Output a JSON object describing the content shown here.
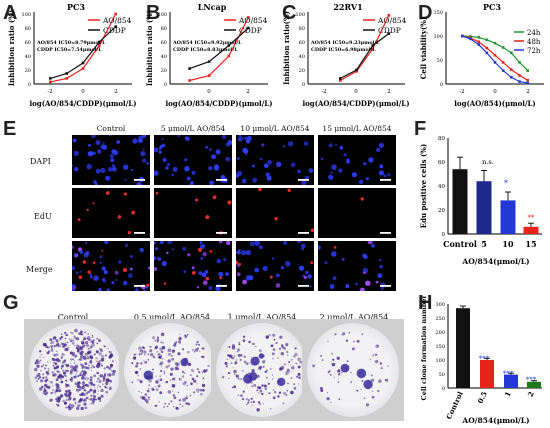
{
  "panel_letters": [
    "A",
    "B",
    "C",
    "D",
    "E",
    "F",
    "G",
    "H"
  ],
  "panel_a": {
    "title": "PC3",
    "legend": [
      "AO/854",
      "CDDP"
    ],
    "annotation": [
      "AO/854 IC50=8.79μmol/L",
      "CDDP IC50=7.54μmol/L"
    ],
    "xlabel": "log(AO/854/CDDP)(μmol/L)",
    "ylabel": "Inhibition ratio (%)",
    "xticks": [
      "-2",
      "0",
      "2"
    ],
    "yticks": [
      "0",
      "20",
      "40",
      "60",
      "80",
      "100"
    ]
  },
  "panel_b": {
    "title": "LNcap",
    "legend": [
      "AO/854",
      "CDDP"
    ],
    "annotation": [
      "AO/854 IC50=9.92μmol/L",
      "CDDP IC50=8.83μmol/L"
    ],
    "xlabel": "log(AO/854/CDDP)(μmol/L)",
    "ylabel": "Inhibition ratio (%)",
    "xticks": [
      "0",
      "2"
    ],
    "yticks": [
      "0",
      "20",
      "40",
      "60",
      "80",
      "100"
    ]
  },
  "panel_c": {
    "title": "22RV1",
    "legend": [
      "AO/854",
      "CDDP"
    ],
    "annotation": [
      "AO/854 IC50=9.23μmol/L",
      "CDDP IC50=6.98μmol/L"
    ],
    "xlabel": "log(AO/854/CDDP)(μmol/L)",
    "ylabel": "Inhibition ratio(%)",
    "xticks": [
      "-2",
      "0",
      "2"
    ],
    "yticks": [
      "0",
      "20",
      "40",
      "60",
      "80",
      "100"
    ]
  },
  "panel_d": {
    "title": "PC3",
    "legend": [
      "24h",
      "48h",
      "72h"
    ],
    "xlabel": "log(AO/854)(μmol/L)",
    "ylabel": "Cell viability(%)",
    "xticks": [
      "-2",
      "0",
      "2"
    ],
    "yticks": [
      "0",
      "50",
      "100",
      "150"
    ]
  },
  "panel_e": {
    "columns": [
      "Control",
      "5 μmol/L AO/854",
      "10 μmol/L AO/854",
      "15 μmol/L AO/854"
    ],
    "rows": [
      "DAPI",
      "EdU",
      "Merge"
    ]
  },
  "panel_f": {
    "ylabel": "Edu positive cells (%)",
    "xlabel": "AO/854(μmol/L)",
    "categories": [
      "Control",
      "5",
      "10",
      "15"
    ],
    "yticks": [
      "0",
      "20",
      "40",
      "60",
      "80"
    ],
    "annotations": [
      "n.s.",
      "*",
      "**"
    ]
  },
  "panel_g": {
    "columns": [
      "Control",
      "0.5 μmol/L AO/854",
      "1 μmol/L AO/854",
      "2 μmol/L AO/854"
    ]
  },
  "panel_h": {
    "ylabel": "Cell clone formation numbers",
    "xlabel": "AO/854(μmol/L)",
    "categories": [
      "Control",
      "0.5",
      "1",
      "2"
    ],
    "yticks": [
      "0",
      "50",
      "100",
      "150",
      "200",
      "250",
      "300"
    ],
    "annotations": [
      "***",
      "***",
      "***"
    ]
  },
  "colors": {
    "red": "#e8231b",
    "black": "#111111",
    "green": "#1f9a2e",
    "blue": "#2438d6",
    "navy": "#1d2a8a",
    "darkgreen": "#1e7a1e"
  },
  "chart_data": [
    {
      "panel": "A",
      "type": "line",
      "title": "PC3",
      "xlabel": "log(AO/854/CDDP)(μmol/L)",
      "ylabel": "Inhibition ratio (%)",
      "xlim": [
        -3,
        3
      ],
      "ylim": [
        0,
        100
      ],
      "series": [
        {
          "name": "AO/854",
          "color": "#e8231b",
          "x": [
            -2.0,
            -1.0,
            0.0,
            1.0,
            2.0
          ],
          "y": [
            3,
            8,
            22,
            55,
            100
          ]
        },
        {
          "name": "CDDP",
          "color": "#111111",
          "x": [
            -2.0,
            -1.0,
            0.0,
            1.0,
            2.0
          ],
          "y": [
            8,
            15,
            30,
            60,
            82
          ]
        }
      ]
    },
    {
      "panel": "B",
      "type": "line",
      "title": "LNcap",
      "xlabel": "log(AO/854/CDDP)(μmol/L)",
      "ylabel": "Inhibition ratio (%)",
      "xlim": [
        -2,
        3
      ],
      "ylim": [
        0,
        100
      ],
      "series": [
        {
          "name": "AO/854",
          "color": "#e8231b",
          "x": [
            -1.0,
            0.0,
            1.0,
            2.0
          ],
          "y": [
            5,
            12,
            40,
            95
          ]
        },
        {
          "name": "CDDP",
          "color": "#111111",
          "x": [
            -1.0,
            0.0,
            1.0,
            2.0
          ],
          "y": [
            22,
            32,
            55,
            80
          ]
        }
      ]
    },
    {
      "panel": "C",
      "type": "line",
      "title": "22RV1",
      "xlabel": "log(AO/854/CDDP)(μmol/L)",
      "ylabel": "Inhibition ratio(%)",
      "xlim": [
        -3,
        3
      ],
      "ylim": [
        0,
        100
      ],
      "series": [
        {
          "name": "AO/854",
          "color": "#e8231b",
          "x": [
            -1.0,
            0.0,
            1.0,
            2.0
          ],
          "y": [
            5,
            18,
            50,
            98
          ]
        },
        {
          "name": "CDDP",
          "color": "#111111",
          "x": [
            -1.0,
            0.0,
            1.0,
            2.0
          ],
          "y": [
            8,
            20,
            55,
            72
          ]
        }
      ]
    },
    {
      "panel": "D",
      "type": "line",
      "title": "PC3",
      "xlabel": "log(AO/854)(μmol/L)",
      "ylabel": "Cell viability(%)",
      "xlim": [
        -3,
        3
      ],
      "ylim": [
        0,
        150
      ],
      "series": [
        {
          "name": "24h",
          "color": "#1f9a2e",
          "x": [
            -2.0,
            -1.5,
            -1.0,
            -0.5,
            0.0,
            0.5,
            1.0,
            1.5,
            2.0
          ],
          "y": [
            100,
            99,
            97,
            92,
            85,
            76,
            65,
            45,
            28
          ]
        },
        {
          "name": "48h",
          "color": "#e8231b",
          "x": [
            -2.0,
            -1.5,
            -1.0,
            -0.5,
            0.0,
            0.5,
            1.0,
            1.5,
            2.0
          ],
          "y": [
            100,
            96,
            88,
            75,
            60,
            45,
            30,
            18,
            8
          ]
        },
        {
          "name": "72h",
          "color": "#2438d6",
          "x": [
            -2.0,
            -1.5,
            -1.0,
            -0.5,
            0.0,
            0.5,
            1.0,
            1.5,
            2.0
          ],
          "y": [
            100,
            94,
            82,
            65,
            45,
            28,
            14,
            5,
            2
          ]
        }
      ]
    },
    {
      "panel": "F",
      "type": "bar",
      "xlabel": "AO/854(μmol/L)",
      "ylabel": "Edu positive cells (%)",
      "categories": [
        "Control",
        "5",
        "10",
        "15"
      ],
      "values": [
        54,
        44,
        28,
        6
      ],
      "errors": [
        10,
        9,
        7,
        3
      ],
      "colors": [
        "#111111",
        "#1d2a8a",
        "#2438d6",
        "#e8231b"
      ],
      "ylim": [
        0,
        80
      ]
    },
    {
      "panel": "H",
      "type": "bar",
      "xlabel": "AO/854(μmol/L)",
      "ylabel": "Cell clone formation numbers",
      "categories": [
        "Control",
        "0.5",
        "1",
        "2"
      ],
      "values": [
        285,
        100,
        48,
        22
      ],
      "errors": [
        8,
        6,
        5,
        4
      ],
      "colors": [
        "#111111",
        "#e8231b",
        "#2438d6",
        "#1e7a1e"
      ],
      "ylim": [
        0,
        300
      ]
    }
  ]
}
